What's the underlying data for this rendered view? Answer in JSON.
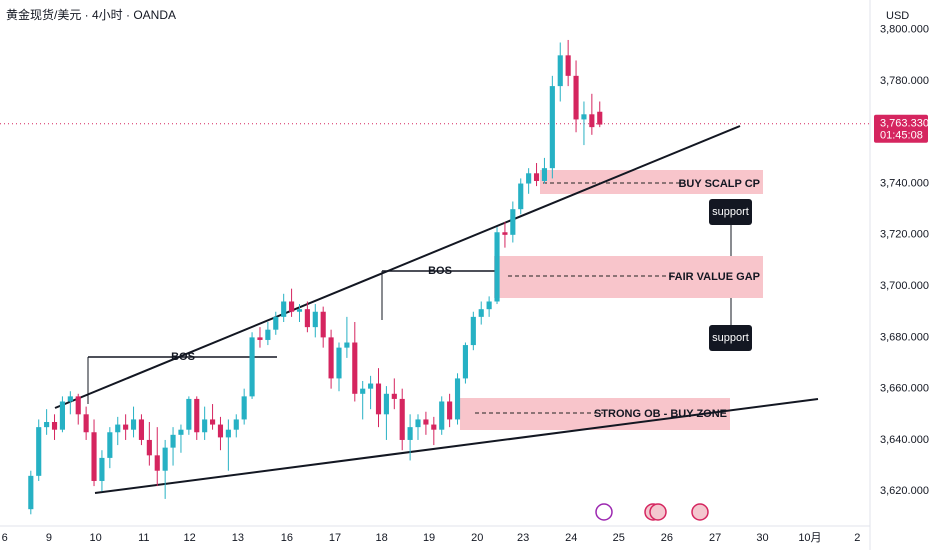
{
  "chart_data": {
    "type": "candlestick",
    "title": "黄金现货/美元 · 4小时 · OANDA",
    "currency": "USD",
    "up_color": "#26b1c4",
    "down_color": "#d5255f",
    "xlim": [
      -3.9,
      106.2
    ],
    "xticks": [
      {
        "value": -3.3,
        "label": "6"
      },
      {
        "value": 2.3,
        "label": "9"
      },
      {
        "value": 8.2,
        "label": "10"
      },
      {
        "value": 14.3,
        "label": "11"
      },
      {
        "value": 20.1,
        "label": "12"
      },
      {
        "value": 26.2,
        "label": "13"
      },
      {
        "value": 32.4,
        "label": "16"
      },
      {
        "value": 38.5,
        "label": "17"
      },
      {
        "value": 44.4,
        "label": "18"
      },
      {
        "value": 50.4,
        "label": "19"
      },
      {
        "value": 56.5,
        "label": "20"
      },
      {
        "value": 62.3,
        "label": "23"
      },
      {
        "value": 68.4,
        "label": "24"
      },
      {
        "value": 74.4,
        "label": "25"
      },
      {
        "value": 80.5,
        "label": "26"
      },
      {
        "value": 86.6,
        "label": "27"
      },
      {
        "value": 92.6,
        "label": "30"
      },
      {
        "value": 98.6,
        "label": "10月"
      },
      {
        "value": 104.6,
        "label": "2"
      }
    ],
    "ylim": [
      3608,
      3803
    ],
    "yticks": [
      {
        "value": 3620,
        "label": "3,620.000"
      },
      {
        "value": 3640,
        "label": "3,640.000"
      },
      {
        "value": 3660,
        "label": "3,660.000"
      },
      {
        "value": 3680,
        "label": "3,680.000"
      },
      {
        "value": 3700,
        "label": "3,700.000"
      },
      {
        "value": 3720,
        "label": "3,720.000"
      },
      {
        "value": 3740,
        "label": "3,740.000"
      },
      {
        "value": 3780,
        "label": "3,780.000"
      },
      {
        "value": 3800,
        "label": "3,800.000"
      }
    ],
    "last_price": {
      "value": 3763.33,
      "label": "3,763.330"
    },
    "countdown": "01:45:08",
    "annotations": [
      "BUY SCALP CP",
      "FAIR VALUE GAP",
      "STRONG OB - BUY ZONE",
      "BOS",
      "BOS",
      "support",
      "support"
    ],
    "x": [
      0,
      1,
      2,
      3,
      4,
      5,
      6,
      7,
      8,
      9,
      10,
      11,
      12,
      13,
      14,
      15,
      16,
      17,
      18,
      19,
      20,
      21,
      22,
      23,
      24,
      25,
      26,
      27,
      28,
      29,
      30,
      31,
      32,
      33,
      34,
      35,
      36,
      37,
      38,
      39,
      40,
      41,
      42,
      43,
      44,
      45,
      46,
      47,
      48,
      49,
      50,
      51,
      52,
      53,
      54,
      55,
      56,
      57,
      58,
      59,
      60,
      61,
      62,
      63,
      64,
      65,
      66,
      67,
      68,
      69,
      70,
      71,
      72
    ],
    "open": [
      3613,
      3626,
      3645,
      3647,
      3644,
      3655,
      3657,
      3650,
      3643,
      3624,
      3633,
      3643,
      3646,
      3644,
      3648,
      3640,
      3634,
      3628,
      3637,
      3642,
      3644,
      3656,
      3643,
      3648,
      3646,
      3641,
      3644,
      3648,
      3657,
      3680,
      3679,
      3683,
      3688,
      3694,
      3690,
      3691,
      3684,
      3690,
      3680,
      3664,
      3676,
      3678,
      3658,
      3660,
      3662,
      3650,
      3658,
      3656,
      3640,
      3645,
      3648,
      3646,
      3644,
      3655,
      3648,
      3664,
      3677,
      3688,
      3691,
      3694,
      3721,
      3720,
      3730,
      3740,
      3744,
      3741,
      3746,
      3778,
      3790,
      3782,
      3765,
      3767,
      3768
    ],
    "high": [
      3628,
      3648,
      3652,
      3650,
      3657,
      3659,
      3658,
      3653,
      3648,
      3636,
      3645,
      3649,
      3650,
      3653,
      3650,
      3647,
      3645,
      3640,
      3645,
      3646,
      3657,
      3657,
      3653,
      3654,
      3649,
      3648,
      3650,
      3660,
      3682,
      3684,
      3686,
      3690,
      3697,
      3699,
      3693,
      3694,
      3693,
      3692,
      3683,
      3678,
      3688,
      3686,
      3663,
      3665,
      3668,
      3661,
      3664,
      3660,
      3650,
      3650,
      3651,
      3649,
      3657,
      3658,
      3666,
      3678,
      3690,
      3694,
      3696,
      3723,
      3725,
      3733,
      3742,
      3746,
      3748,
      3750,
      3782,
      3795,
      3796,
      3788,
      3772,
      3775,
      3772
    ],
    "low": [
      3611,
      3624,
      3642,
      3640,
      3643,
      3650,
      3646,
      3640,
      3622,
      3620,
      3629,
      3638,
      3640,
      3641,
      3638,
      3630,
      3622,
      3617,
      3630,
      3635,
      3642,
      3640,
      3640,
      3644,
      3636,
      3628,
      3641,
      3646,
      3656,
      3676,
      3677,
      3681,
      3686,
      3688,
      3686,
      3682,
      3680,
      3676,
      3660,
      3659,
      3672,
      3655,
      3648,
      3652,
      3645,
      3640,
      3652,
      3636,
      3632,
      3640,
      3642,
      3638,
      3642,
      3645,
      3646,
      3662,
      3675,
      3685,
      3688,
      3693,
      3715,
      3717,
      3728,
      3736,
      3739,
      3740,
      3742,
      3772,
      3778,
      3760,
      3755,
      3759,
      3762
    ],
    "close": [
      3626,
      3645,
      3647,
      3644,
      3655,
      3657,
      3650,
      3643,
      3624,
      3633,
      3643,
      3646,
      3644,
      3648,
      3640,
      3634,
      3628,
      3637,
      3642,
      3644,
      3656,
      3643,
      3648,
      3646,
      3641,
      3644,
      3648,
      3657,
      3680,
      3679,
      3683,
      3688,
      3694,
      3690,
      3691,
      3684,
      3690,
      3680,
      3664,
      3676,
      3678,
      3658,
      3660,
      3662,
      3650,
      3658,
      3656,
      3640,
      3645,
      3648,
      3646,
      3644,
      3655,
      3648,
      3664,
      3677,
      3688,
      3691,
      3694,
      3721,
      3720,
      3730,
      3740,
      3744,
      3741,
      3746,
      3778,
      3790,
      3782,
      3765,
      3767,
      3762,
      3763
    ]
  }
}
